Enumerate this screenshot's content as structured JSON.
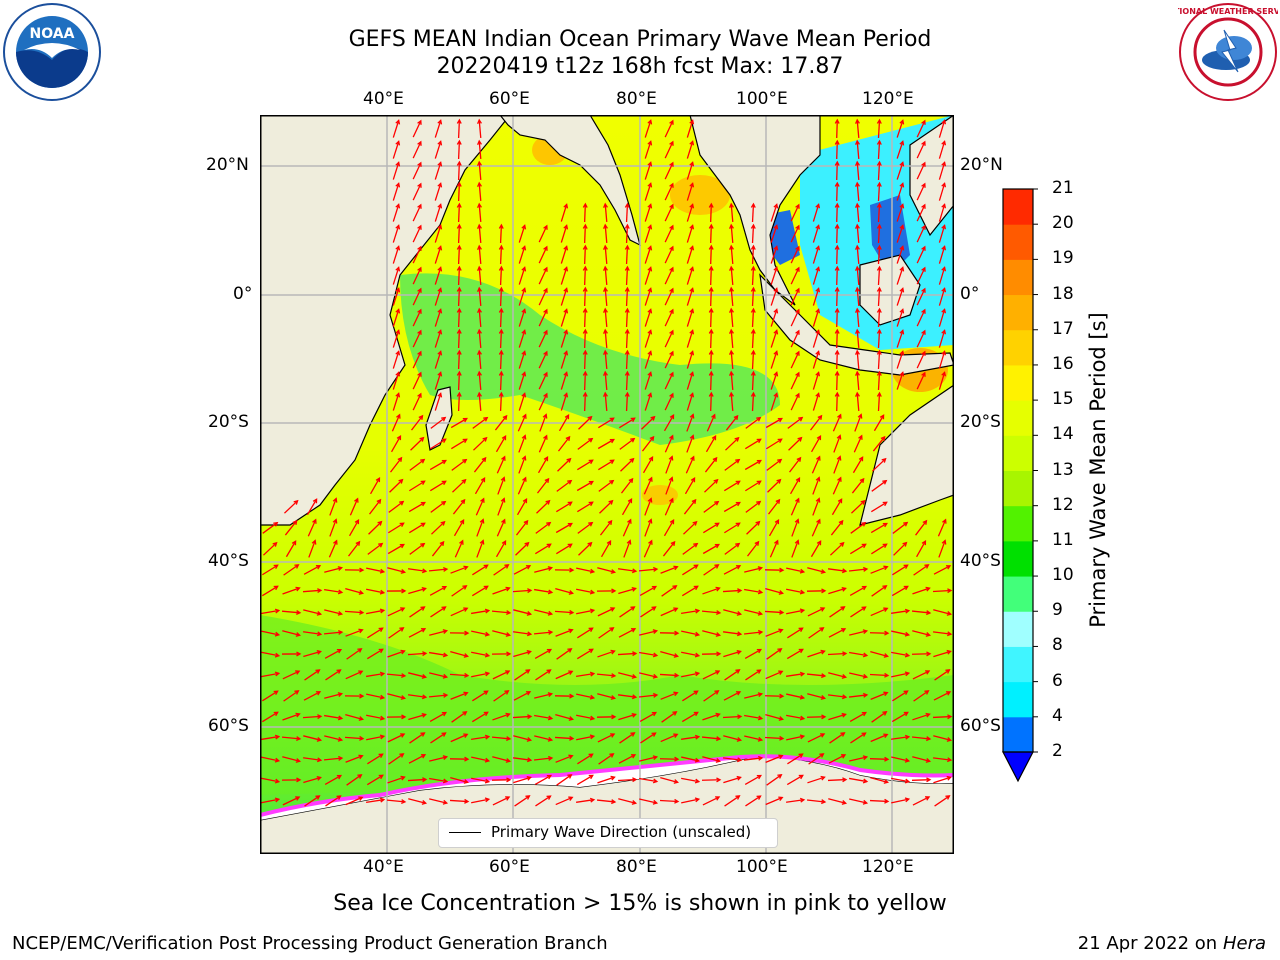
{
  "header": {
    "title_line1": "GEFS MEAN Indian Ocean Primary Wave Mean Period",
    "title_line2": "20220419 t12z 168h fcst   Max: 17.87"
  },
  "map": {
    "lon_labels": [
      "40°E",
      "60°E",
      "80°E",
      "100°E",
      "120°E"
    ],
    "lat_labels": [
      "20°N",
      "0°",
      "20°S",
      "40°S",
      "60°S"
    ],
    "legend_label": "Primary Wave Direction (unscaled)",
    "land_color": "#efeddc",
    "ice_color": "#ffffff",
    "arrow_color": "#ff0000"
  },
  "colorbar": {
    "title": "Primary Wave Mean Period [s]",
    "levels": [
      "2",
      "4",
      "6",
      "8",
      "9",
      "10",
      "11",
      "12",
      "13",
      "14",
      "15",
      "16",
      "17",
      "18",
      "19",
      "20",
      "21"
    ],
    "colors": [
      "#0073ff",
      "#00f0ff",
      "#40f5ff",
      "#a0ffff",
      "#42ff7a",
      "#00e000",
      "#52f200",
      "#a8f500",
      "#ccff00",
      "#e6ff00",
      "#fff200",
      "#ffd200",
      "#ffb000",
      "#ff8c00",
      "#ff5a00",
      "#ff2a00"
    ],
    "under_color": "#0000ff"
  },
  "footer": {
    "note": "Sea Ice Concentration > 15% is shown in pink to yellow",
    "credit": "NCEP/EMC/Verification Post Processing Product Generation Branch",
    "date_prefix": "21 Apr 2022 on ",
    "date_machine": "Hera"
  },
  "logos": {
    "noaa_text": "NOAA",
    "nws_text": "NATIONAL WEATHER SERVICE"
  }
}
